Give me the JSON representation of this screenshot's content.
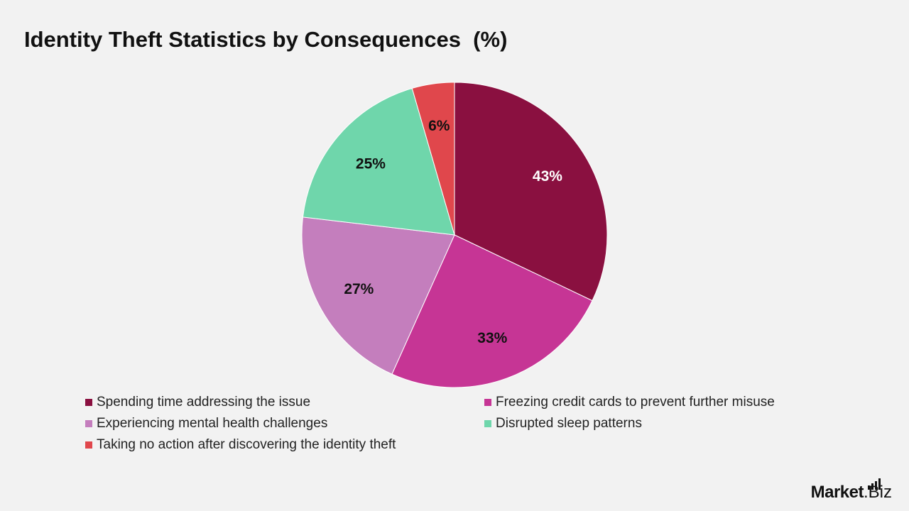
{
  "chart_data": {
    "type": "pie",
    "title": "Identity Theft Statistics by Consequences  (%)",
    "slices": [
      {
        "label": "Spending time addressing the issue",
        "value": 43,
        "display": "43%",
        "color": "#8a1040",
        "text_color": "#ffffff"
      },
      {
        "label": "Freezing credit cards to prevent further misuse",
        "value": 33,
        "display": "33%",
        "color": "#c63595",
        "text_color": "#111111"
      },
      {
        "label": "Experiencing mental health challenges",
        "value": 27,
        "display": "27%",
        "color": "#c47ebd",
        "text_color": "#111111"
      },
      {
        "label": "Disrupted sleep patterns",
        "value": 25,
        "display": "25%",
        "color": "#6fd6ab",
        "text_color": "#111111"
      },
      {
        "label": "Taking no action after discovering the identity theft",
        "value": 6,
        "display": "6%",
        "color": "#e0474c",
        "text_color": "#111111"
      }
    ],
    "legend_position": "bottom"
  },
  "brand": {
    "name_bold": "Market",
    "name_rest": ".Biz"
  }
}
